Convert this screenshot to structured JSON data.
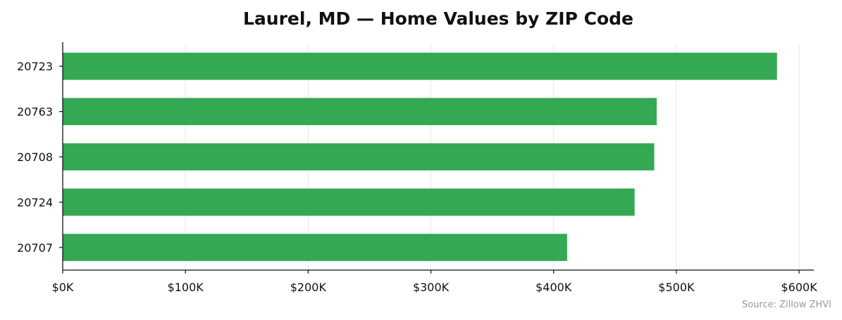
{
  "chart_data": {
    "type": "bar",
    "orientation": "horizontal",
    "title": "Laurel, MD — Home Values by ZIP Code",
    "xlabel": "",
    "ylabel": "",
    "categories": [
      "20723",
      "20763",
      "20708",
      "20724",
      "20707"
    ],
    "values": [
      582000,
      484000,
      482000,
      466000,
      411000
    ],
    "xlim": [
      0,
      612000
    ],
    "xticks": [
      0,
      100000,
      200000,
      300000,
      400000,
      500000,
      600000
    ],
    "xtick_labels": [
      "$0K",
      "$100K",
      "$200K",
      "$300K",
      "$400K",
      "$500K",
      "$600K"
    ],
    "bar_color": "#34a853",
    "grid": "vertical",
    "legend": "none",
    "source": "Source: Zillow ZHVI"
  }
}
